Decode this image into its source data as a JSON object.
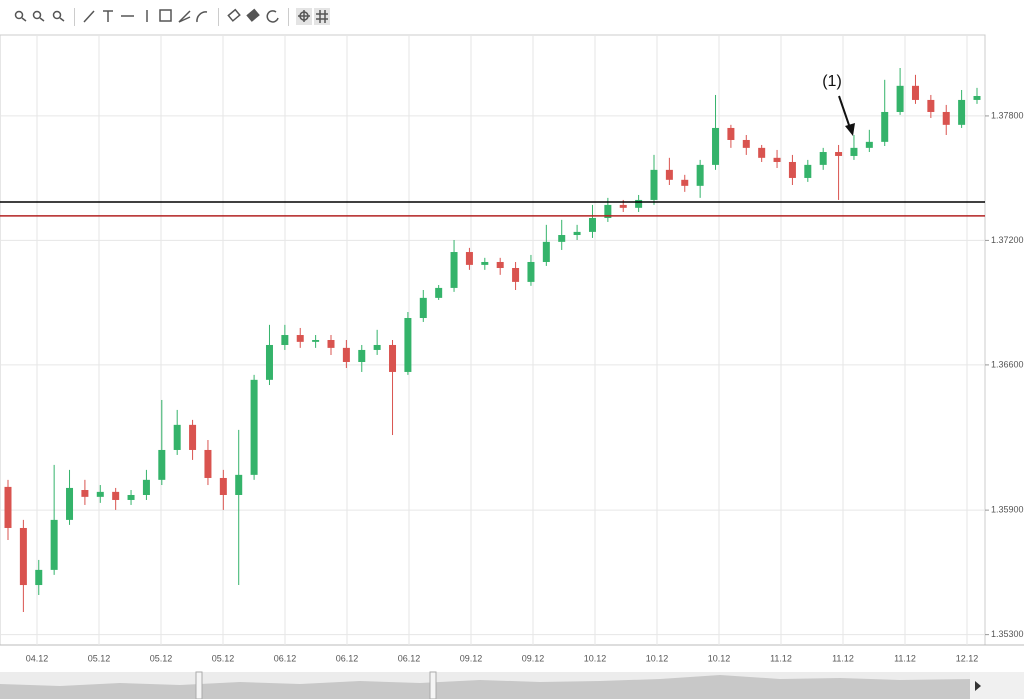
{
  "chart_data": {
    "type": "candlestick",
    "annotation": "(1)",
    "xlabels": [
      "04.12",
      "05.12",
      "05.12",
      "05.12",
      "06.12",
      "06.12",
      "06.12",
      "09.12",
      "09.12",
      "10.12",
      "10.12",
      "10.12",
      "11.12",
      "11.12",
      "11.12",
      "12.12"
    ],
    "ylim": [
      1.3525,
      1.3819
    ],
    "yticks": [
      {
        "value": 1.378,
        "label": "1.37800"
      },
      {
        "value": 1.372,
        "label": "1.37200"
      },
      {
        "value": 1.366,
        "label": "1.36600"
      },
      {
        "value": 1.359,
        "label": "1.35900"
      },
      {
        "value": 1.353,
        "label": "1.35300"
      }
    ],
    "grid": true,
    "up_color": "#34b36a",
    "down_color": "#d9534f",
    "hlines": [
      {
        "value": 1.37385,
        "color": "#000000"
      },
      {
        "value": 1.37318,
        "color": "#b22222"
      }
    ],
    "open": [
      1.36012,
      1.35814,
      1.35539,
      1.35612,
      1.35853,
      1.35997,
      1.35964,
      1.35988,
      1.35949,
      1.35973,
      1.36046,
      1.3619,
      1.36311,
      1.3619,
      1.36055,
      1.35973,
      1.3607,
      1.36528,
      1.36696,
      1.36744,
      1.36711,
      1.3672,
      1.36682,
      1.36614,
      1.36672,
      1.36696,
      1.36566,
      1.36826,
      1.36923,
      1.36971,
      1.37144,
      1.37082,
      1.37096,
      1.37067,
      1.37,
      1.37096,
      1.37193,
      1.37226,
      1.37241,
      1.37308,
      1.37371,
      1.37357,
      1.37395,
      1.3754,
      1.37492,
      1.37463,
      1.37564,
      1.37742,
      1.37684,
      1.37646,
      1.37598,
      1.37578,
      1.37501,
      1.37564,
      1.37626,
      1.37607,
      1.37646,
      1.37675,
      1.37819,
      1.37945,
      1.37877,
      1.37819,
      1.37757,
      1.37877
    ],
    "high": [
      1.36046,
      1.35853,
      1.3566,
      1.36118,
      1.36094,
      1.36046,
      1.36021,
      1.36007,
      1.35997,
      1.36094,
      1.36431,
      1.36383,
      1.36335,
      1.36238,
      1.36094,
      1.36287,
      1.36552,
      1.36793,
      1.36793,
      1.36778,
      1.36744,
      1.36744,
      1.3672,
      1.36696,
      1.36769,
      1.3672,
      1.36855,
      1.36961,
      1.36985,
      1.37202,
      1.37164,
      1.37116,
      1.37116,
      1.37096,
      1.3713,
      1.37275,
      1.37299,
      1.37275,
      1.37371,
      1.37405,
      1.37395,
      1.37419,
      1.37612,
      1.37598,
      1.37516,
      1.37588,
      1.37901,
      1.37757,
      1.37708,
      1.3766,
      1.37636,
      1.37612,
      1.37588,
      1.37646,
      1.3766,
      1.37708,
      1.37733,
      1.37974,
      1.38031,
      1.37998,
      1.37901,
      1.37853,
      1.37925,
      1.37935
    ],
    "low": [
      1.35756,
      1.35409,
      1.35491,
      1.35588,
      1.35829,
      1.35925,
      1.35935,
      1.35901,
      1.35925,
      1.35949,
      1.36021,
      1.36166,
      1.36142,
      1.36021,
      1.35901,
      1.35539,
      1.36046,
      1.36503,
      1.36672,
      1.36682,
      1.36682,
      1.36648,
      1.36585,
      1.36566,
      1.36648,
      1.36262,
      1.36552,
      1.36807,
      1.36913,
      1.36952,
      1.37058,
      1.37058,
      1.37034,
      1.36961,
      1.36981,
      1.37077,
      1.37154,
      1.37202,
      1.37212,
      1.37289,
      1.37337,
      1.37337,
      1.37371,
      1.37467,
      1.37434,
      1.37405,
      1.3754,
      1.37646,
      1.37612,
      1.37578,
      1.37549,
      1.37467,
      1.37482,
      1.3754,
      1.37395,
      1.37588,
      1.37626,
      1.37655,
      1.37805,
      1.37858,
      1.3779,
      1.37708,
      1.37742,
      1.37858
    ],
    "close": [
      1.35814,
      1.35539,
      1.35612,
      1.35853,
      1.36007,
      1.35964,
      1.35988,
      1.35949,
      1.35973,
      1.36046,
      1.3619,
      1.36311,
      1.3619,
      1.36055,
      1.35973,
      1.3607,
      1.36528,
      1.36696,
      1.36744,
      1.36711,
      1.3672,
      1.36682,
      1.36614,
      1.36672,
      1.36696,
      1.36566,
      1.36826,
      1.36923,
      1.36971,
      1.37144,
      1.37082,
      1.37096,
      1.37067,
      1.37,
      1.37096,
      1.37193,
      1.37226,
      1.37241,
      1.37308,
      1.37371,
      1.37357,
      1.37395,
      1.3754,
      1.37492,
      1.37463,
      1.37564,
      1.37742,
      1.37684,
      1.37646,
      1.37598,
      1.37578,
      1.37501,
      1.37564,
      1.37626,
      1.37607,
      1.37646,
      1.37675,
      1.37819,
      1.37945,
      1.37877,
      1.37819,
      1.37757,
      1.37877,
      1.37896
    ]
  }
}
